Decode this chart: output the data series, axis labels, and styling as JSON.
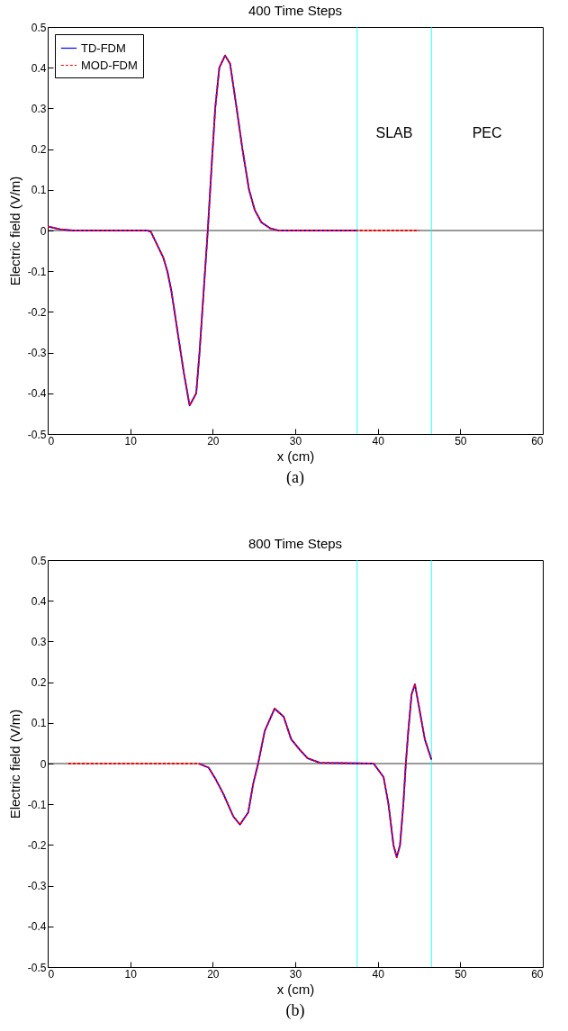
{
  "chart_data": [
    {
      "type": "line",
      "title": "400 Time Steps",
      "xlabel": "x (cm)",
      "ylabel": "Electric field (V/m)",
      "xlim": [
        0,
        60
      ],
      "xticks": [
        0,
        10,
        20,
        30,
        40,
        50,
        60
      ],
      "ylim": [
        -0.5,
        0.5
      ],
      "yticks": [
        -0.5,
        -0.4,
        -0.3,
        -0.2,
        -0.1,
        0,
        0.1,
        0.2,
        0.3,
        0.4,
        0.5
      ],
      "grid": false,
      "legend": "top left",
      "series": [
        {
          "name": "TD-FDM",
          "color": "#0000ff",
          "line_style": "solid",
          "x": [
            0,
            1.5,
            3,
            12,
            12.5,
            13,
            14,
            14.5,
            15,
            15.9,
            16.5,
            17.2,
            18,
            18.4,
            18.9,
            19.4,
            19.9,
            20.3,
            20.8,
            21.5,
            22.1,
            22.9,
            23.6,
            24.4,
            25.1,
            25.9,
            27,
            28,
            37.5
          ],
          "values": [
            0.01,
            0.003,
            0,
            0,
            -0.003,
            -0.024,
            -0.066,
            -0.1,
            -0.15,
            -0.27,
            -0.35,
            -0.43,
            -0.4,
            -0.3,
            -0.15,
            0,
            0.17,
            0.3,
            0.4,
            0.43,
            0.41,
            0.3,
            0.2,
            0.1,
            0.05,
            0.02,
            0.005,
            0,
            0
          ]
        },
        {
          "name": "MOD-FDM",
          "color": "#ff0000",
          "line_style": "dashed",
          "x": [
            0,
            1.5,
            3,
            12,
            12.5,
            13,
            14,
            14.5,
            15,
            15.9,
            16.5,
            17.2,
            18,
            18.4,
            18.9,
            19.4,
            19.9,
            20.3,
            20.8,
            21.5,
            22.1,
            22.9,
            23.6,
            24.4,
            25.1,
            25.9,
            27,
            28,
            37.5,
            45
          ],
          "values": [
            0.01,
            0.003,
            0,
            0,
            -0.003,
            -0.024,
            -0.066,
            -0.1,
            -0.15,
            -0.27,
            -0.35,
            -0.43,
            -0.4,
            -0.3,
            -0.15,
            0,
            0.17,
            0.3,
            0.4,
            0.43,
            0.41,
            0.3,
            0.2,
            0.1,
            0.05,
            0.02,
            0.005,
            0,
            0,
            0
          ]
        }
      ],
      "ref_lines": [
        {
          "axis": "y",
          "value": 0,
          "color": "#000000"
        },
        {
          "axis": "x",
          "value": 37.5,
          "color": "#00ffff"
        },
        {
          "axis": "x",
          "value": 46.5,
          "color": "#00ffff"
        }
      ],
      "annotations": [
        "SLAB",
        "PEC",
        "(a)"
      ]
    },
    {
      "type": "line",
      "title": "800 Time Steps",
      "xlabel": "x (cm)",
      "ylabel": "Electric field (V/m)",
      "xlim": [
        0,
        60
      ],
      "xticks": [
        0,
        10,
        20,
        30,
        40,
        50,
        60
      ],
      "ylim": [
        -0.5,
        0.5
      ],
      "yticks": [
        -0.5,
        -0.4,
        -0.3,
        -0.2,
        -0.1,
        0,
        0.1,
        0.2,
        0.3,
        0.4,
        0.5
      ],
      "grid": false,
      "legend": "top left",
      "series": [
        {
          "name": "TD-FDM",
          "color": "#0000ff",
          "line_style": "solid",
          "x": [
            18.3,
            19.5,
            20.4,
            21.3,
            22.5,
            23.3,
            24.3,
            24.9,
            25.5,
            26.3,
            27.5,
            28.6,
            29.5,
            30.5,
            31.5,
            33,
            39.5,
            40.7,
            41.3,
            41.9,
            42.3,
            42.7,
            43.1,
            43.4,
            43.7,
            44.1,
            44.5,
            44.9,
            45.7,
            46.5
          ],
          "values": [
            0,
            -0.01,
            -0.04,
            -0.075,
            -0.13,
            -0.15,
            -0.12,
            -0.05,
            0,
            0.08,
            0.135,
            0.115,
            0.06,
            0.035,
            0.013,
            0.002,
            0,
            -0.033,
            -0.1,
            -0.2,
            -0.23,
            -0.2,
            -0.1,
            0,
            0.08,
            0.17,
            0.195,
            0.15,
            0.06,
            0.01
          ]
        },
        {
          "name": "MOD-FDM",
          "color": "#ff0000",
          "line_style": "dashed",
          "x": [
            2.5,
            18.3,
            19.5,
            20.4,
            21.3,
            22.5,
            23.3,
            24.3,
            24.9,
            25.5,
            26.3,
            27.5,
            28.6,
            29.5,
            30.5,
            31.5,
            33,
            39.5,
            40.7,
            41.3,
            41.9,
            42.3,
            42.7,
            43.1,
            43.4,
            43.7,
            44.1,
            44.5,
            44.9,
            45.7,
            46.5
          ],
          "values": [
            0,
            0,
            -0.01,
            -0.04,
            -0.075,
            -0.13,
            -0.15,
            -0.12,
            -0.05,
            0,
            0.08,
            0.135,
            0.115,
            0.06,
            0.035,
            0.013,
            0.002,
            0,
            -0.033,
            -0.1,
            -0.2,
            -0.23,
            -0.2,
            -0.1,
            0,
            0.08,
            0.17,
            0.195,
            0.15,
            0.06,
            0.01
          ]
        }
      ],
      "ref_lines": [
        {
          "axis": "y",
          "value": 0,
          "color": "#000000"
        },
        {
          "axis": "x",
          "value": 37.5,
          "color": "#00ffff"
        },
        {
          "axis": "x",
          "value": 46.5,
          "color": "#00ffff"
        }
      ],
      "annotations": [
        "(b)"
      ]
    }
  ]
}
